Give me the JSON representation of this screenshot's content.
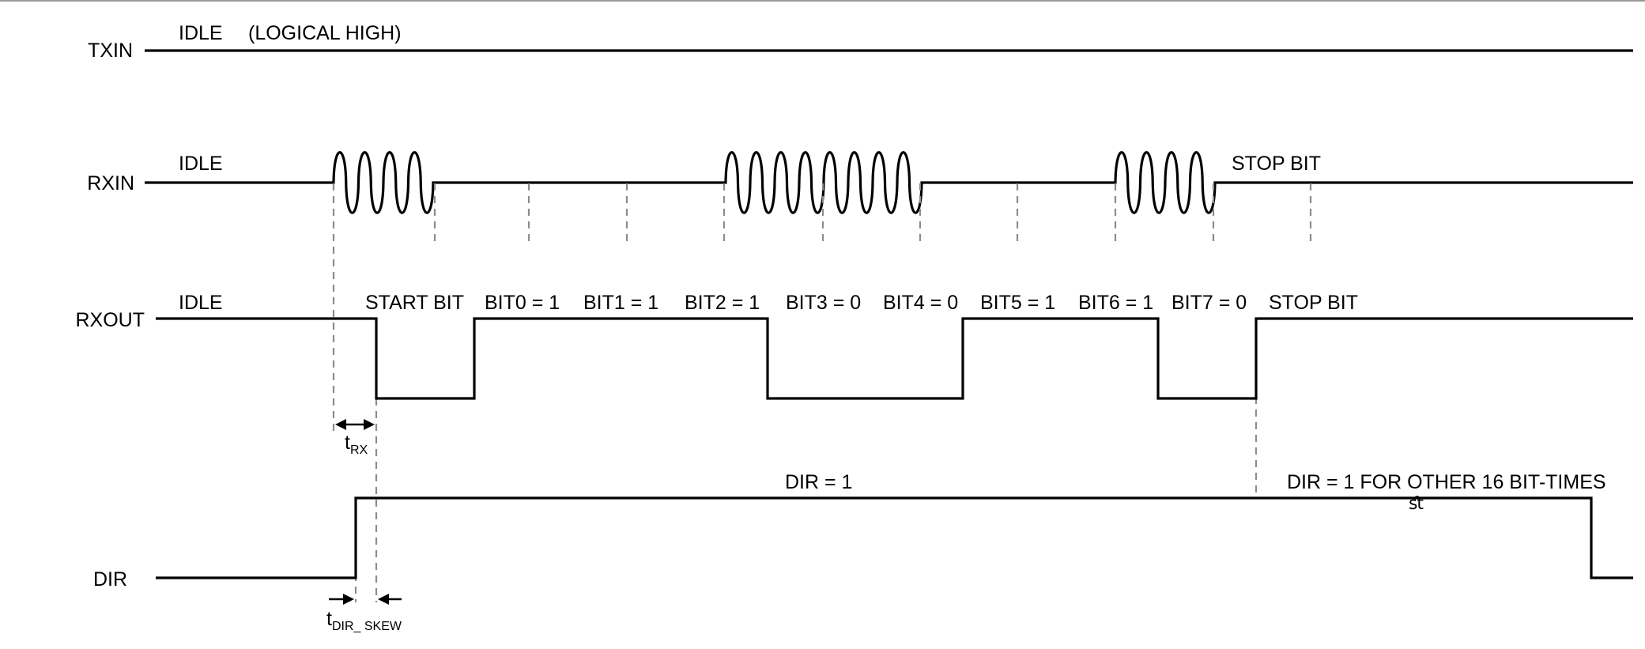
{
  "signals": {
    "txin": "TXIN",
    "rxin": "RXIN",
    "rxout": "RXOUT",
    "dir": "DIR"
  },
  "txin": {
    "idle": "IDLE",
    "note": "(LOGICAL HIGH)"
  },
  "rxin": {
    "idle": "IDLE",
    "stop": "STOP BIT"
  },
  "rxout": {
    "idle": "IDLE",
    "bits": [
      "START BIT",
      "BIT0 = 1",
      "BIT1 = 1",
      "BIT2 = 1",
      "BIT3 = 0",
      "BIT4 = 0",
      "BIT5 = 1",
      "BIT6 = 1",
      "BIT7 = 0",
      "STOP BIT"
    ]
  },
  "dir": {
    "high": "DIR = 1",
    "extended": "DIR = 1 FOR OTHER 16 BIT-TIMES",
    "break_mark": "ﬆ"
  },
  "timing": {
    "trx_main": "t",
    "trx_sub": "RX",
    "tskew_main": "t",
    "tskew_sub": "DIR_ SKEW"
  }
}
